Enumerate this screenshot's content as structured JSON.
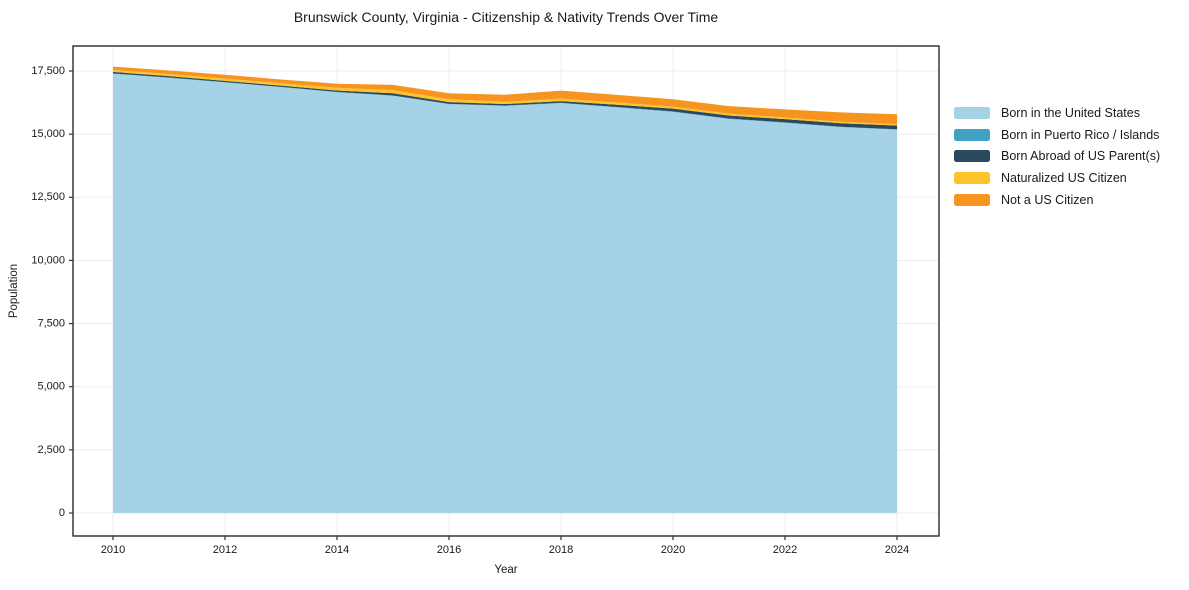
{
  "chart_data": {
    "type": "area",
    "stacked": true,
    "title": "Brunswick County, Virginia - Citizenship & Nativity Trends Over Time",
    "xlabel": "Year",
    "ylabel": "Population",
    "x": [
      2010,
      2011,
      2012,
      2013,
      2014,
      2015,
      2016,
      2017,
      2018,
      2019,
      2020,
      2021,
      2022,
      2023,
      2024
    ],
    "series": [
      {
        "key": "born-us",
        "name": "Born in the United States",
        "color": "#a5d2e7",
        "values": [
          17390,
          17230,
          17050,
          16860,
          16660,
          16520,
          16190,
          16120,
          16230,
          16060,
          15880,
          15600,
          15450,
          15280,
          15180
        ]
      },
      {
        "key": "puerto-rico",
        "name": "Born in Puerto Rico / Islands",
        "color": "#3fa2c2",
        "values": [
          15,
          12,
          10,
          10,
          12,
          10,
          10,
          12,
          15,
          15,
          20,
          18,
          15,
          12,
          10
        ]
      },
      {
        "key": "born-abroad",
        "name": "Born Abroad of US Parent(s)",
        "color": "#29495c",
        "values": [
          60,
          55,
          50,
          50,
          55,
          90,
          70,
          60,
          60,
          90,
          110,
          120,
          130,
          140,
          150
        ]
      },
      {
        "key": "naturalized",
        "name": "Naturalized US Citizen",
        "color": "#fcc32d",
        "values": [
          80,
          85,
          90,
          95,
          110,
          120,
          110,
          90,
          100,
          90,
          80,
          70,
          65,
          60,
          50
        ]
      },
      {
        "key": "not-citizen",
        "name": "Not a US Citizen",
        "color": "#f7941f",
        "values": [
          130,
          140,
          150,
          150,
          160,
          210,
          240,
          280,
          320,
          300,
          290,
          300,
          320,
          370,
          400
        ]
      }
    ],
    "xticks": [
      "2010",
      "2012",
      "2014",
      "2016",
      "2018",
      "2020",
      "2022",
      "2024"
    ],
    "xtick_years": [
      2010,
      2012,
      2014,
      2016,
      2018,
      2020,
      2022,
      2024
    ],
    "yticks": [
      "0",
      "2,500",
      "5,000",
      "7,500",
      "10,000",
      "12,500",
      "15,000",
      "17,500"
    ],
    "ytick_values": [
      0,
      2500,
      5000,
      7500,
      10000,
      12500,
      15000,
      17500
    ],
    "ylim": [
      0,
      17500
    ],
    "grid": true,
    "legend_position": "right",
    "colors": {
      "grid": "#ededed",
      "spine": "#1a1a1a",
      "tick": "#333333",
      "background": "#ffffff"
    }
  }
}
